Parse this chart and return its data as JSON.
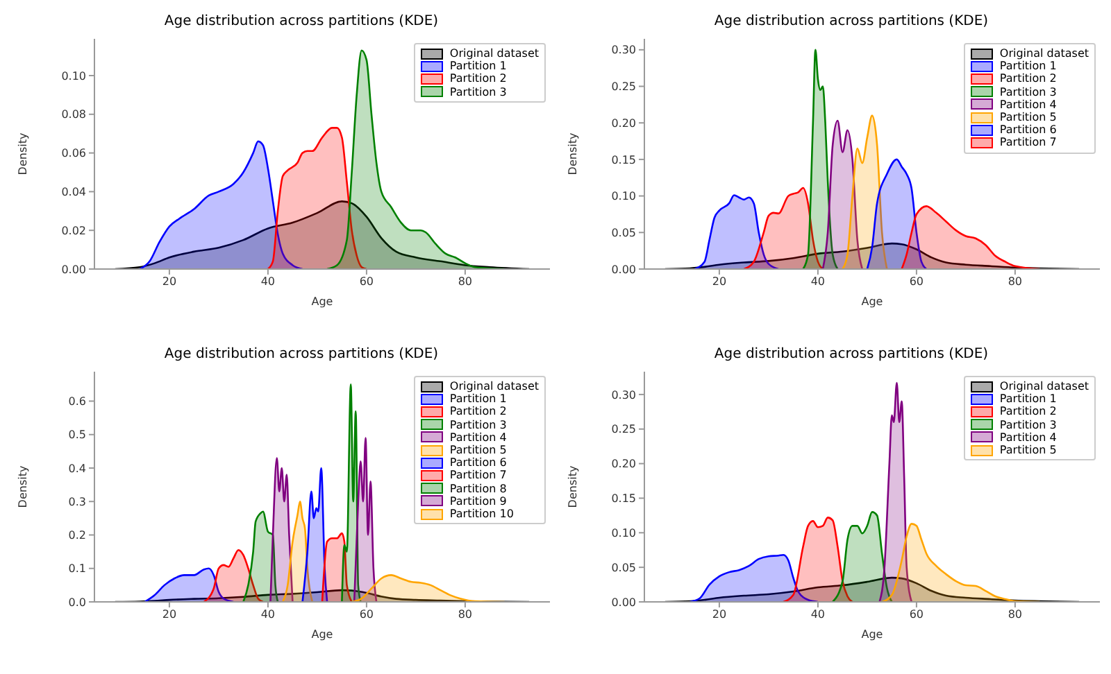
{
  "chart_data": [
    {
      "type": "area",
      "title": "Age distribution across partitions (KDE)",
      "xlabel": "Age",
      "ylabel": "Density",
      "xlim": [
        4.8,
        97.2
      ],
      "xticks": [
        20,
        40,
        60,
        80
      ],
      "ylim": [
        0,
        0.119
      ],
      "yticks": [
        {
          "value": 0,
          "label": "0.00"
        },
        {
          "value": 0.02,
          "label": "0.02"
        },
        {
          "value": 0.04,
          "label": "0.04"
        },
        {
          "value": 0.06,
          "label": "0.06"
        },
        {
          "value": 0.08,
          "label": "0.08"
        },
        {
          "value": 0.1,
          "label": "0.10"
        }
      ],
      "legend": "top right",
      "series": [
        {
          "name": "Original dataset",
          "color": "#000000",
          "x": [
            9,
            14,
            17,
            20,
            25,
            30,
            35,
            40,
            45,
            50,
            55,
            57,
            60,
            63,
            66,
            70,
            75,
            80,
            85,
            93
          ],
          "values": [
            0,
            0.001,
            0.003,
            0.006,
            0.009,
            0.011,
            0.015,
            0.021,
            0.024,
            0.029,
            0.035,
            0.034,
            0.027,
            0.016,
            0.009,
            0.006,
            0.004,
            0.002,
            0.001,
            0
          ]
        },
        {
          "name": "Partition 1",
          "color": "#0000ff",
          "x": [
            14,
            16,
            18,
            20,
            22,
            25,
            28,
            30,
            33,
            35,
            37,
            38,
            39,
            40,
            41,
            42,
            43,
            45,
            47
          ],
          "values": [
            0,
            0.004,
            0.014,
            0.022,
            0.026,
            0.031,
            0.038,
            0.04,
            0.044,
            0.05,
            0.06,
            0.066,
            0.064,
            0.052,
            0.035,
            0.018,
            0.008,
            0.002,
            0
          ]
        },
        {
          "name": "Partition 2",
          "color": "#ff0000",
          "x": [
            40,
            41,
            42,
            43,
            44,
            46,
            47,
            48,
            49,
            51,
            53,
            54,
            55,
            56,
            57,
            58,
            59,
            60
          ],
          "values": [
            0,
            0.004,
            0.03,
            0.048,
            0.051,
            0.055,
            0.06,
            0.061,
            0.061,
            0.068,
            0.073,
            0.073,
            0.068,
            0.045,
            0.02,
            0.007,
            0.001,
            0
          ]
        },
        {
          "name": "Partition 3",
          "color": "#008000",
          "x": [
            52,
            54,
            56,
            57,
            58,
            59,
            60,
            61,
            62,
            63,
            65,
            67,
            69,
            71,
            72,
            74,
            76,
            78,
            80,
            82,
            88
          ],
          "values": [
            0,
            0.002,
            0.015,
            0.05,
            0.09,
            0.113,
            0.108,
            0.08,
            0.055,
            0.04,
            0.032,
            0.024,
            0.02,
            0.02,
            0.019,
            0.013,
            0.008,
            0.006,
            0.003,
            0.001,
            0
          ]
        }
      ]
    },
    {
      "type": "area",
      "title": "Age distribution across partitions (KDE)",
      "xlabel": "Age",
      "ylabel": "Density",
      "xlim": [
        4.8,
        97.2
      ],
      "xticks": [
        20,
        40,
        60,
        80
      ],
      "ylim": [
        0,
        0.315
      ],
      "yticks": [
        {
          "value": 0,
          "label": "0.00"
        },
        {
          "value": 0.05,
          "label": "0.05"
        },
        {
          "value": 0.1,
          "label": "0.10"
        },
        {
          "value": 0.15,
          "label": "0.15"
        },
        {
          "value": 0.2,
          "label": "0.20"
        },
        {
          "value": 0.25,
          "label": "0.25"
        },
        {
          "value": 0.3,
          "label": "0.30"
        }
      ],
      "legend": "top right",
      "series": [
        {
          "name": "Original dataset",
          "color": "#000000",
          "x": [
            9,
            14,
            17,
            20,
            25,
            30,
            35,
            40,
            45,
            50,
            55,
            57,
            60,
            63,
            66,
            70,
            75,
            80,
            85,
            93
          ],
          "values": [
            0,
            0.001,
            0.003,
            0.006,
            0.009,
            0.011,
            0.015,
            0.021,
            0.024,
            0.029,
            0.035,
            0.034,
            0.027,
            0.016,
            0.009,
            0.006,
            0.004,
            0.002,
            0.001,
            0
          ]
        },
        {
          "name": "Partition 1",
          "color": "#0000ff",
          "x": [
            15,
            17,
            18,
            19,
            20,
            22,
            23,
            24,
            25,
            26,
            27,
            28,
            29,
            30,
            32
          ],
          "values": [
            0,
            0.01,
            0.04,
            0.07,
            0.08,
            0.09,
            0.101,
            0.098,
            0.095,
            0.098,
            0.09,
            0.05,
            0.02,
            0.007,
            0
          ]
        },
        {
          "name": "Partition 2",
          "color": "#ff0000",
          "x": [
            25,
            27,
            29,
            30,
            31,
            32,
            34,
            35,
            36,
            37,
            38,
            39,
            40,
            41
          ],
          "values": [
            0,
            0.01,
            0.05,
            0.073,
            0.077,
            0.076,
            0.1,
            0.103,
            0.105,
            0.111,
            0.09,
            0.04,
            0.01,
            0
          ]
        },
        {
          "name": "Partition 3",
          "color": "#008000",
          "x": [
            37,
            38,
            39,
            39.5,
            40,
            40.5,
            41,
            41.5,
            42,
            43,
            44
          ],
          "values": [
            0,
            0.02,
            0.2,
            0.3,
            0.26,
            0.245,
            0.25,
            0.2,
            0.12,
            0.02,
            0
          ]
        },
        {
          "name": "Partition 4",
          "color": "#800080",
          "x": [
            41,
            42,
            43,
            44,
            45,
            46,
            47,
            48,
            49
          ],
          "values": [
            0,
            0.05,
            0.17,
            0.203,
            0.16,
            0.19,
            0.15,
            0.04,
            0
          ]
        },
        {
          "name": "Partition 5",
          "color": "#ffa500",
          "x": [
            45,
            46,
            47,
            48,
            49,
            50,
            51,
            52,
            53,
            54
          ],
          "values": [
            0,
            0.02,
            0.1,
            0.165,
            0.145,
            0.18,
            0.21,
            0.17,
            0.05,
            0
          ]
        },
        {
          "name": "Partition 6",
          "color": "#0000ff",
          "x": [
            50,
            51,
            52,
            54,
            56,
            57,
            58,
            59,
            60,
            61,
            62
          ],
          "values": [
            0,
            0.03,
            0.09,
            0.13,
            0.15,
            0.14,
            0.13,
            0.11,
            0.05,
            0.01,
            0
          ]
        },
        {
          "name": "Partition 7",
          "color": "#ff0000",
          "x": [
            57,
            58,
            59,
            60,
            62,
            64,
            66,
            68,
            70,
            72,
            74,
            76,
            78,
            80,
            85
          ],
          "values": [
            0,
            0.02,
            0.05,
            0.075,
            0.086,
            0.077,
            0.065,
            0.053,
            0.045,
            0.042,
            0.033,
            0.018,
            0.01,
            0.004,
            0
          ]
        }
      ]
    },
    {
      "type": "area",
      "title": "Age distribution across partitions (KDE)",
      "xlabel": "Age",
      "ylabel": "Density",
      "xlim": [
        4.8,
        97.2
      ],
      "xticks": [
        20,
        40,
        60,
        80
      ],
      "ylim": [
        0,
        0.688
      ],
      "yticks": [
        {
          "value": 0,
          "label": "0.0"
        },
        {
          "value": 0.1,
          "label": "0.1"
        },
        {
          "value": 0.2,
          "label": "0.2"
        },
        {
          "value": 0.3,
          "label": "0.3"
        },
        {
          "value": 0.4,
          "label": "0.4"
        },
        {
          "value": 0.5,
          "label": "0.5"
        },
        {
          "value": 0.6,
          "label": "0.6"
        }
      ],
      "legend": "top right",
      "series": [
        {
          "name": "Original dataset",
          "color": "#000000",
          "x": [
            9,
            14,
            17,
            20,
            25,
            30,
            35,
            40,
            45,
            50,
            55,
            57,
            60,
            63,
            66,
            70,
            75,
            80,
            85,
            93
          ],
          "values": [
            0,
            0.001,
            0.003,
            0.006,
            0.009,
            0.011,
            0.015,
            0.021,
            0.024,
            0.029,
            0.035,
            0.034,
            0.027,
            0.016,
            0.009,
            0.006,
            0.004,
            0.002,
            0.001,
            0
          ]
        },
        {
          "name": "Partition 1",
          "color": "#0000ff",
          "x": [
            15,
            17,
            19,
            21,
            23,
            25,
            27,
            28,
            29,
            30,
            31,
            33
          ],
          "values": [
            0,
            0.02,
            0.05,
            0.07,
            0.08,
            0.08,
            0.097,
            0.1,
            0.08,
            0.03,
            0.01,
            0
          ]
        },
        {
          "name": "Partition 2",
          "color": "#ff0000",
          "x": [
            27,
            29,
            30,
            31,
            32,
            33,
            34,
            35,
            36,
            37,
            38,
            39
          ],
          "values": [
            0,
            0.04,
            0.1,
            0.11,
            0.105,
            0.13,
            0.155,
            0.14,
            0.1,
            0.05,
            0.01,
            0
          ]
        },
        {
          "name": "Partition 3",
          "color": "#008000",
          "x": [
            35,
            36,
            37,
            37.5,
            38.5,
            39,
            40,
            41,
            41.5,
            42
          ],
          "values": [
            0,
            0.05,
            0.15,
            0.24,
            0.265,
            0.27,
            0.21,
            0.2,
            0.05,
            0
          ]
        },
        {
          "name": "Partition 4",
          "color": "#800080",
          "x": [
            40.5,
            41,
            41.8,
            42.3,
            42.8,
            43.3,
            43.8,
            44.3,
            45
          ],
          "values": [
            0,
            0.2,
            0.43,
            0.33,
            0.4,
            0.3,
            0.38,
            0.2,
            0
          ]
        },
        {
          "name": "Partition 5",
          "color": "#ffa500",
          "x": [
            43,
            44,
            45,
            46,
            46.5,
            47,
            47.5,
            48,
            49
          ],
          "values": [
            0,
            0.05,
            0.18,
            0.26,
            0.3,
            0.25,
            0.22,
            0.1,
            0
          ]
        },
        {
          "name": "Partition 6",
          "color": "#0000ff",
          "x": [
            47,
            48,
            48.8,
            49.3,
            49.8,
            50.2,
            50.8,
            51.5,
            52
          ],
          "values": [
            0,
            0.15,
            0.33,
            0.25,
            0.28,
            0.27,
            0.4,
            0.1,
            0
          ]
        },
        {
          "name": "Partition 7",
          "color": "#ff0000",
          "x": [
            51,
            52,
            53,
            54,
            55,
            55.5,
            56,
            57
          ],
          "values": [
            0,
            0.18,
            0.19,
            0.19,
            0.205,
            0.18,
            0.05,
            0
          ]
        },
        {
          "name": "Partition 8",
          "color": "#008000",
          "x": [
            55,
            55.5,
            56,
            56.8,
            57.3,
            57.8,
            58.3,
            58.8
          ],
          "values": [
            0,
            0.17,
            0.15,
            0.65,
            0.3,
            0.57,
            0.05,
            0
          ]
        },
        {
          "name": "Partition 9",
          "color": "#800080",
          "x": [
            57.5,
            58.3,
            58.8,
            59.3,
            59.8,
            60.3,
            60.8,
            61.4,
            62
          ],
          "values": [
            0,
            0.3,
            0.42,
            0.3,
            0.49,
            0.2,
            0.36,
            0.1,
            0
          ]
        },
        {
          "name": "Partition 10",
          "color": "#ffa500",
          "x": [
            57,
            59,
            61,
            63,
            65,
            67,
            69,
            71,
            73,
            75,
            77,
            79,
            82,
            88
          ],
          "values": [
            0,
            0.01,
            0.04,
            0.07,
            0.08,
            0.07,
            0.06,
            0.057,
            0.05,
            0.035,
            0.02,
            0.01,
            0.002,
            0
          ]
        }
      ]
    },
    {
      "type": "area",
      "title": "Age distribution across partitions (KDE)",
      "xlabel": "Age",
      "ylabel": "Density",
      "xlim": [
        4.8,
        97.2
      ],
      "xticks": [
        20,
        40,
        60,
        80
      ],
      "ylim": [
        0,
        0.333
      ],
      "yticks": [
        {
          "value": 0,
          "label": "0.00"
        },
        {
          "value": 0.05,
          "label": "0.05"
        },
        {
          "value": 0.1,
          "label": "0.10"
        },
        {
          "value": 0.15,
          "label": "0.15"
        },
        {
          "value": 0.2,
          "label": "0.20"
        },
        {
          "value": 0.25,
          "label": "0.25"
        },
        {
          "value": 0.3,
          "label": "0.30"
        }
      ],
      "legend": "top right",
      "series": [
        {
          "name": "Original dataset",
          "color": "#000000",
          "x": [
            9,
            14,
            17,
            20,
            25,
            30,
            35,
            40,
            45,
            50,
            55,
            57,
            60,
            63,
            66,
            70,
            75,
            80,
            85,
            93
          ],
          "values": [
            0,
            0.001,
            0.003,
            0.006,
            0.009,
            0.011,
            0.015,
            0.021,
            0.024,
            0.029,
            0.035,
            0.034,
            0.027,
            0.016,
            0.009,
            0.006,
            0.004,
            0.002,
            0.001,
            0
          ]
        },
        {
          "name": "Partition 1",
          "color": "#0000ff",
          "x": [
            14,
            16,
            18,
            20,
            22,
            24,
            26,
            28,
            30,
            32,
            33,
            34,
            35,
            36,
            38,
            40
          ],
          "values": [
            0,
            0.005,
            0.025,
            0.037,
            0.043,
            0.046,
            0.052,
            0.062,
            0.066,
            0.067,
            0.068,
            0.06,
            0.035,
            0.015,
            0.003,
            0
          ]
        },
        {
          "name": "Partition 2",
          "color": "#ff0000",
          "x": [
            33,
            35,
            37,
            38,
            39,
            40,
            41,
            42,
            43,
            44,
            45,
            46,
            47
          ],
          "values": [
            0,
            0.01,
            0.08,
            0.11,
            0.117,
            0.108,
            0.11,
            0.122,
            0.118,
            0.08,
            0.03,
            0.008,
            0
          ]
        },
        {
          "name": "Partition 3",
          "color": "#008000",
          "x": [
            43,
            45,
            46,
            47,
            48,
            49,
            50,
            51,
            52,
            53,
            54,
            55
          ],
          "values": [
            0,
            0.03,
            0.09,
            0.11,
            0.11,
            0.099,
            0.11,
            0.13,
            0.125,
            0.07,
            0.02,
            0
          ]
        },
        {
          "name": "Partition 4",
          "color": "#800080",
          "x": [
            52.5,
            53.5,
            54.5,
            55,
            55.4,
            56,
            56.5,
            57,
            57.5,
            58,
            59
          ],
          "values": [
            0,
            0.05,
            0.2,
            0.27,
            0.26,
            0.317,
            0.26,
            0.29,
            0.18,
            0.05,
            0
          ]
        },
        {
          "name": "Partition 5",
          "color": "#ffa500",
          "x": [
            53,
            55,
            57,
            58,
            59,
            60,
            61,
            62,
            64,
            66,
            68,
            70,
            72,
            74,
            76,
            78,
            80,
            85
          ],
          "values": [
            0,
            0.01,
            0.06,
            0.095,
            0.113,
            0.11,
            0.09,
            0.07,
            0.052,
            0.04,
            0.03,
            0.024,
            0.023,
            0.016,
            0.008,
            0.004,
            0.001,
            0
          ]
        }
      ]
    }
  ]
}
